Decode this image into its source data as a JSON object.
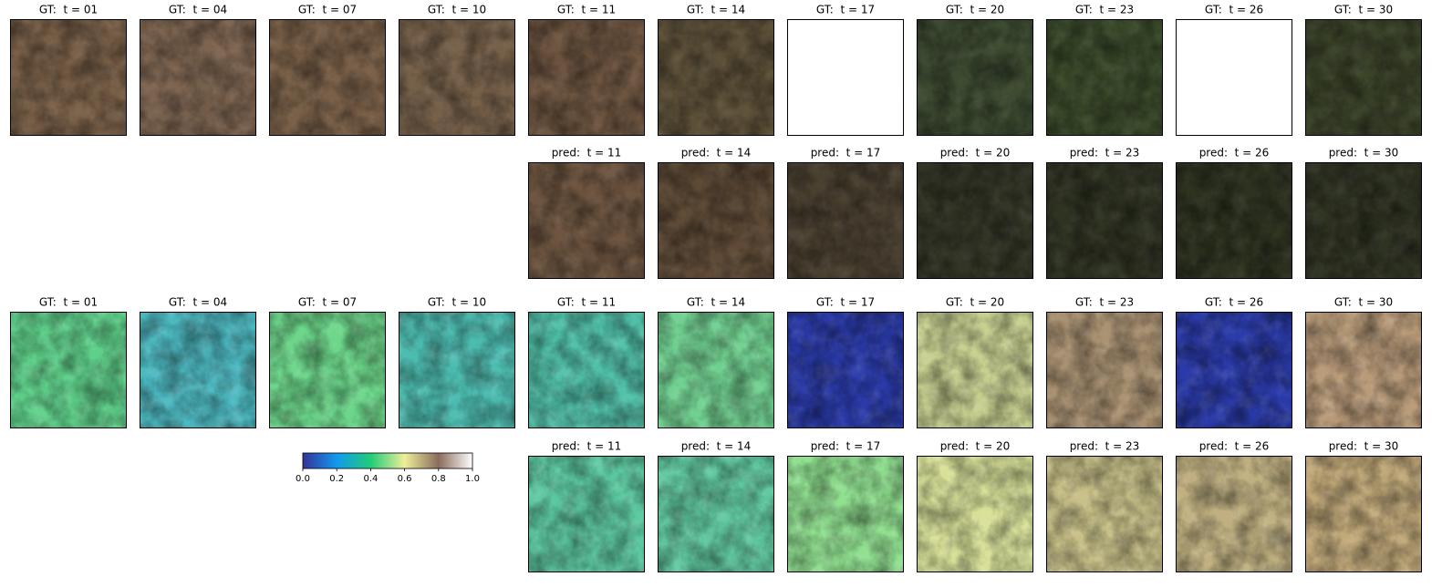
{
  "rows": [
    {
      "kind": "GT",
      "titles": [
        "GT:  t = 01",
        "GT:  t = 04",
        "GT:  t = 07",
        "GT:  t = 10",
        "GT:  t = 11",
        "GT:  t = 14",
        "GT:  t = 17",
        "GT:  t = 20",
        "GT:  t = 23",
        "GT:  t = 26",
        "GT:  t = 30"
      ]
    },
    {
      "kind": "pred",
      "titles": [
        "pred:  t = 11",
        "pred:  t = 14",
        "pred:  t = 17",
        "pred:  t = 20",
        "pred:  t = 23",
        "pred:  t = 26",
        "pred:  t = 30"
      ]
    },
    {
      "kind": "GT",
      "titles": [
        "GT:  t = 01",
        "GT:  t = 04",
        "GT:  t = 07",
        "GT:  t = 10",
        "GT:  t = 11",
        "GT:  t = 14",
        "GT:  t = 17",
        "GT:  t = 20",
        "GT:  t = 23",
        "GT:  t = 26",
        "GT:  t = 30"
      ]
    },
    {
      "kind": "pred",
      "titles": [
        "pred:  t = 11",
        "pred:  t = 14",
        "pred:  t = 17",
        "pred:  t = 20",
        "pred:  t = 23",
        "pred:  t = 26",
        "pred:  t = 30"
      ]
    }
  ],
  "colorbar": {
    "xlim": [
      0,
      1
    ],
    "xticks": [
      {
        "value": 0,
        "label": "0.0"
      },
      {
        "value": 0.2,
        "label": "0.2"
      },
      {
        "value": 0.4,
        "label": "0.4"
      },
      {
        "value": 0.6,
        "label": "0.6"
      },
      {
        "value": 0.8,
        "label": "0.8"
      },
      {
        "value": 1,
        "label": "1.0"
      }
    ],
    "colormap": [
      "#333399",
      "#1199ee",
      "#22cc77",
      "#eeee99",
      "#8a6c5c",
      "#ffffff"
    ]
  }
}
